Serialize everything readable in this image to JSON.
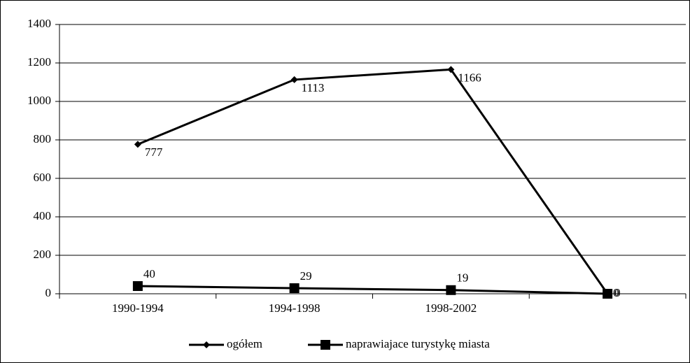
{
  "chart_data": {
    "type": "line",
    "categories": [
      "1990-1994",
      "1994-1998",
      "1998-2002",
      null
    ],
    "series": [
      {
        "name": "ogółem",
        "color": "#000000",
        "marker": "diamond",
        "values": [
          777,
          1113,
          1166,
          0
        ]
      },
      {
        "name": "naprawiajace turystykę miasta",
        "color": "#000000",
        "marker": "square",
        "values": [
          40,
          29,
          19,
          0
        ]
      }
    ],
    "ylim": [
      0,
      1400
    ],
    "yticks": [
      0,
      200,
      400,
      600,
      800,
      1000,
      1200,
      1400
    ],
    "grid": true,
    "legend": "bottom"
  }
}
